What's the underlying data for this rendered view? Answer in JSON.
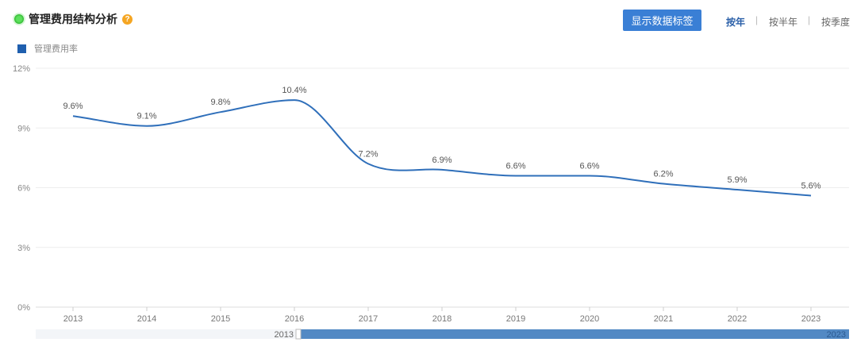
{
  "header": {
    "title": "管理费用结构分析",
    "help": "?",
    "show_labels_button": "显示数据标签"
  },
  "periods": [
    {
      "label": "按年",
      "active": true
    },
    {
      "label": "按半年",
      "active": false
    },
    {
      "label": "按季度",
      "active": false
    }
  ],
  "separator": "|",
  "colors": {
    "line": "#2f6fba",
    "accent": "#3a7fd5",
    "legend": "#1f5fae"
  },
  "slider": {
    "start_label": "2013",
    "end_label": "2023",
    "start_fraction": 0.32,
    "end_fraction": 1.0
  },
  "chart_data": {
    "type": "line",
    "title": "管理费用结构分析",
    "legend": [
      "管理费用率"
    ],
    "legend_placement": "top-left",
    "categories": [
      "2013",
      "2014",
      "2015",
      "2016",
      "2017",
      "2018",
      "2019",
      "2020",
      "2021",
      "2022",
      "2023"
    ],
    "series": [
      {
        "name": "管理费用率",
        "values": [
          9.6,
          9.1,
          9.8,
          10.4,
          7.2,
          6.9,
          6.6,
          6.6,
          6.2,
          5.9,
          5.6
        ],
        "labels": [
          "9.6%",
          "9.1%",
          "9.8%",
          "10.4%",
          "7.2%",
          "6.9%",
          "6.6%",
          "6.6%",
          "6.2%",
          "5.9%",
          "5.6%"
        ]
      }
    ],
    "yticks": [
      "0%",
      "3%",
      "6%",
      "9%",
      "12%"
    ],
    "ytick_values": [
      0,
      3,
      6,
      9,
      12
    ],
    "ylim": [
      0,
      12
    ],
    "grid": true
  }
}
